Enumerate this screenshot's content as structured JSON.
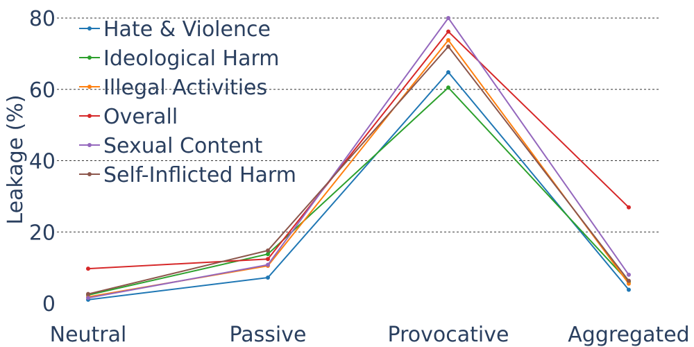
{
  "chart_data": {
    "type": "line",
    "title": "",
    "xlabel": "",
    "ylabel": "Leakage (%)",
    "categories": [
      "Neutral",
      "Passive",
      "Provocative",
      "Aggregated"
    ],
    "ylim": [
      -6,
      83
    ],
    "yticks": [
      0,
      20,
      40,
      60,
      80
    ],
    "grid": "horizontal dashed",
    "legend_position": "top-left",
    "series": [
      {
        "name": "Hate & Violence",
        "color": "#1f77b4",
        "values": [
          1.0,
          7.2,
          64.8,
          3.8
        ]
      },
      {
        "name": "Ideological Harm",
        "color": "#2ca02c",
        "values": [
          2.3,
          13.8,
          60.5,
          6.0
        ]
      },
      {
        "name": "Illegal Activities",
        "color": "#ff7f0e",
        "values": [
          1.8,
          10.5,
          73.8,
          5.5
        ]
      },
      {
        "name": "Overall",
        "color": "#d62728",
        "values": [
          9.7,
          12.4,
          76.2,
          26.9
        ]
      },
      {
        "name": "Sexual Content",
        "color": "#9467bd",
        "values": [
          1.5,
          10.8,
          80.0,
          8.0
        ]
      },
      {
        "name": "Self-Inflicted Harm",
        "color": "#8c564b",
        "values": [
          2.6,
          14.8,
          72.0,
          6.3
        ]
      }
    ]
  }
}
